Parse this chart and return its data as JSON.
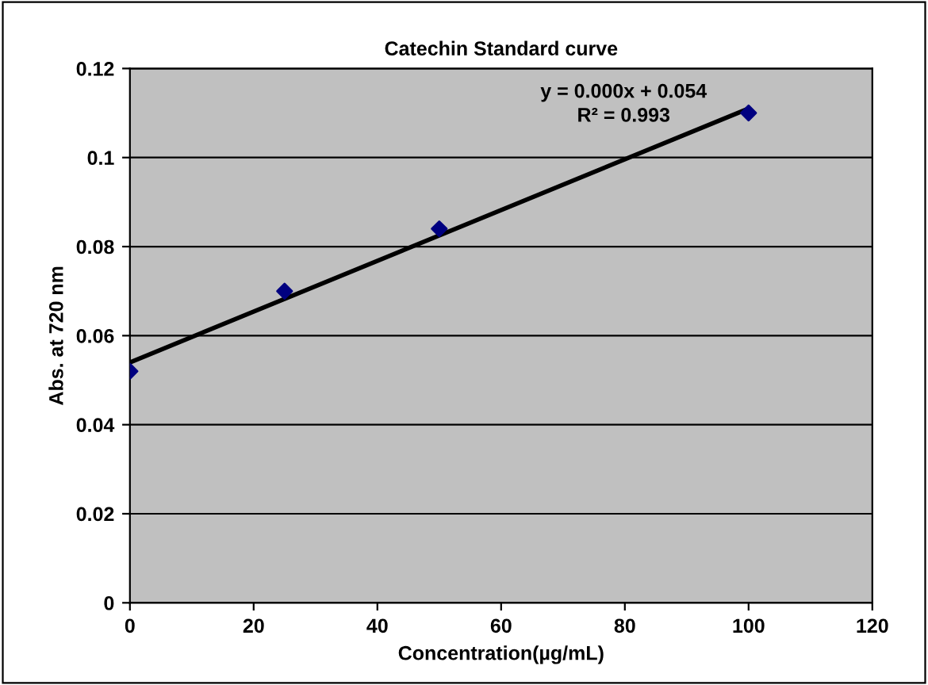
{
  "chart_data": {
    "type": "scatter",
    "title": "Catechin Standard curve",
    "xlabel": "Concentration(µg/mL)",
    "ylabel": "Abs. at 720 nm",
    "series": [
      {
        "color": "#000080",
        "marker": "diamond",
        "x": [
          0,
          25,
          50,
          100
        ],
        "values": [
          0.052,
          0.07,
          0.084,
          0.11
        ]
      },
      {
        "type": "line",
        "color": "#000000",
        "marker": "none",
        "x": [
          0,
          100
        ],
        "values": [
          0.054,
          0.111
        ]
      }
    ],
    "annotations": [
      "y = 0.000x + 0.054",
      "R² = 0.993"
    ],
    "xlim": [
      0,
      120
    ],
    "xticks": [
      0,
      20,
      40,
      60,
      80,
      100,
      120
    ],
    "ylim": [
      0,
      0.12
    ],
    "yticks": [
      0,
      0.02,
      0.04,
      0.06,
      0.08,
      0.1,
      0.12
    ],
    "grid": "y"
  }
}
